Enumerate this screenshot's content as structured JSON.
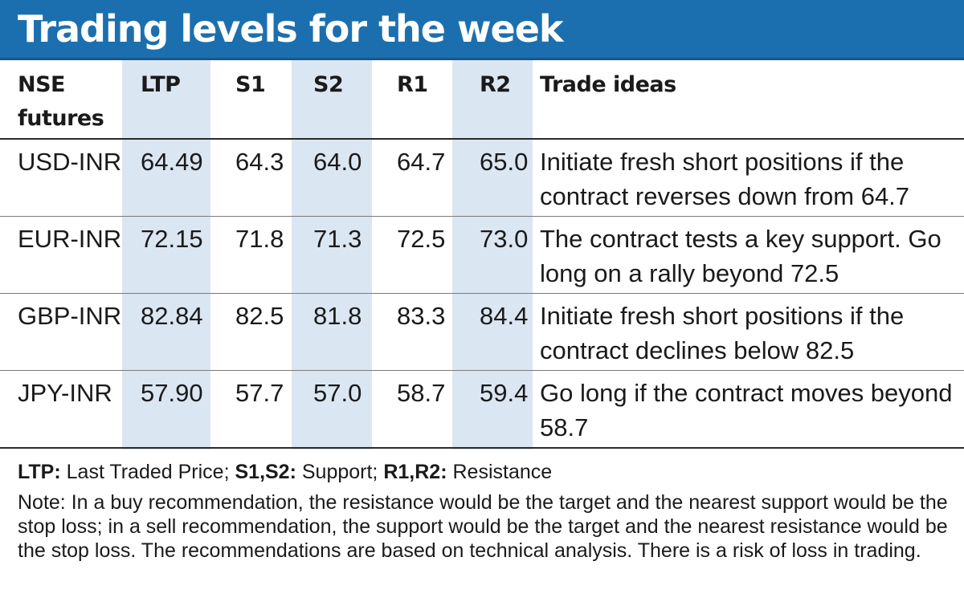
{
  "title": "Trading levels for the week",
  "table": {
    "headers": [
      "NSE futures",
      "LTP",
      "S1",
      "S2",
      "R1",
      "R2",
      "Trade ideas"
    ],
    "rows": [
      {
        "name": "USD-INR",
        "ltp": "64.49",
        "s1": "64.3",
        "s2": "64.0",
        "r1": "64.7",
        "r2": "65.0",
        "idea": "Initiate fresh short positions if the contract reverses down from 64.7"
      },
      {
        "name": "EUR-INR",
        "ltp": "72.15",
        "s1": "71.8",
        "s2": "71.3",
        "r1": "72.5",
        "r2": "73.0",
        "idea": "The contract tests a key support. Go long on a rally beyond 72.5"
      },
      {
        "name": "GBP-INR",
        "ltp": "82.84",
        "s1": "82.5",
        "s2": "81.8",
        "r1": "83.3",
        "r2": "84.4",
        "idea": "Initiate fresh short positions if the contract declines below 82.5"
      },
      {
        "name": "JPY-INR",
        "ltp": "57.90",
        "s1": "57.7",
        "s2": "57.0",
        "r1": "58.7",
        "r2": "59.4",
        "idea": "Go long if the contract moves beyond 58.7"
      }
    ]
  },
  "legend": {
    "ltp_term": "LTP:",
    "ltp_def": "Last Traded Price;",
    "s_term": "S1,S2:",
    "s_def": "Support;",
    "r_term": "R1,R2:",
    "r_def": "Resistance"
  },
  "note": "Note: In a buy recommendation, the resistance would be the target and the nearest support would be the stop loss; in a sell recommendation, the support would be the target and the nearest resistance would be the stop loss. The recommendations are based on technical analysis. There is a risk of loss in trading.",
  "colors": {
    "banner": "#1c6fae",
    "column_shade": "#dbe6f3",
    "title_text": "#ffffff"
  }
}
